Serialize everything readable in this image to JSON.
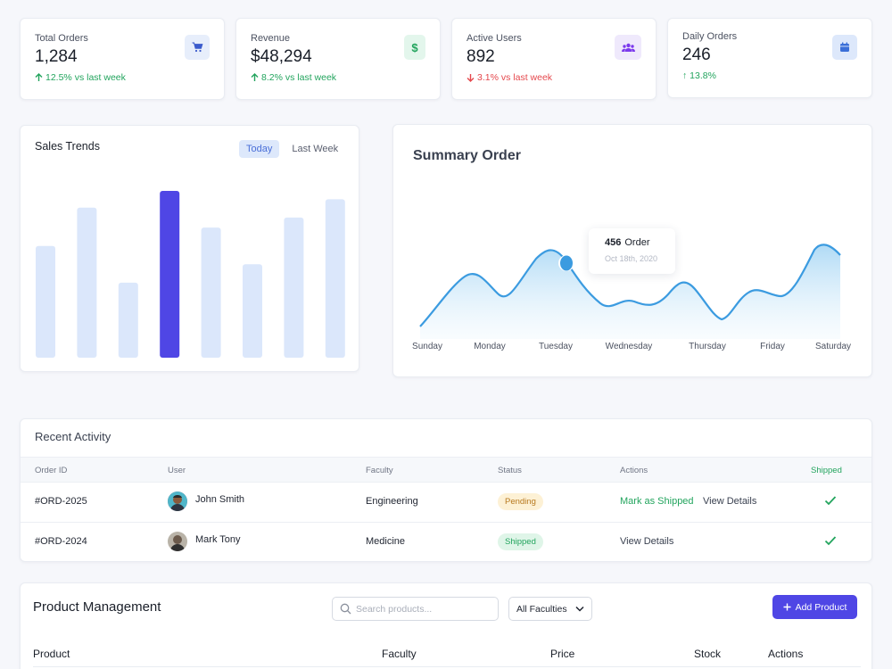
{
  "stats": [
    {
      "label": "Total Orders",
      "value": "1,284",
      "delta": "12.5% vs last week",
      "trend": "up",
      "icon": "cart-icon",
      "icon_color": "#3b5bcc",
      "icon_bg": "#e7eefb"
    },
    {
      "label": "Revenue",
      "value": "$48,294",
      "delta": "8.2% vs last week",
      "trend": "up",
      "icon": "dollar-icon",
      "icon_color": "#22a45d",
      "icon_bg": "#e3f6ec"
    },
    {
      "label": "Active Users",
      "value": "892",
      "delta": "3.1% vs last week",
      "trend": "down",
      "icon": "users-icon",
      "icon_color": "#7c3aed",
      "icon_bg": "#efe9fc"
    },
    {
      "label": "Daily Orders",
      "value": "246",
      "delta": "↑ 13.8%",
      "trend": "up",
      "icon": "calendar-icon",
      "icon_color": "#3b6fd8",
      "icon_bg": "#dde8fb"
    }
  ],
  "sales_trends": {
    "title": "Sales Trends",
    "tabs": [
      "Today",
      "Last Week"
    ],
    "active_tab": "Today",
    "chart_data": {
      "type": "bar",
      "values": [
        0.67,
        0.9,
        0.45,
        1.0,
        0.78,
        0.56,
        0.84,
        0.95
      ],
      "highlight_index": 3,
      "bar_color": "#dbe7fb",
      "highlight_color": "#4f46e5"
    }
  },
  "summary_order": {
    "title": "Summary Order",
    "tooltip": {
      "count": "456",
      "label": "Order",
      "date": "Oct 18th, 2020"
    },
    "chart_data": {
      "type": "area",
      "categories": [
        "Sunday",
        "Monday",
        "Tuesday",
        "Wednesday",
        "Thursday",
        "Friday",
        "Saturday"
      ],
      "line_color": "#3b9be0",
      "fill_color": "#bfe2f7"
    }
  },
  "recent_activity": {
    "title": "Recent Activity",
    "columns": [
      "Order ID",
      "User",
      "Faculty",
      "Status",
      "Actions",
      "Shipped"
    ],
    "rows": [
      {
        "order_id": "#ORD-2025",
        "user": "John Smith",
        "faculty": "Engineering",
        "status": "Pending",
        "status_color": "#b7791f",
        "status_bg": "#fdf1d5",
        "action_primary": "Mark as Shipped",
        "action_secondary": "View Details"
      },
      {
        "order_id": "#ORD-2024",
        "user": "Mark Tony",
        "faculty": "Medicine",
        "status": "Shipped",
        "status_color": "#22a45d",
        "status_bg": "#dff5e8",
        "action_primary": "View Details",
        "action_secondary": ""
      }
    ]
  },
  "product_management": {
    "title": "Product Management",
    "search_placeholder": "Search products...",
    "faculty_filter": "All Faculties",
    "add_button": "Add Product",
    "columns": [
      "Product",
      "Faculty",
      "Price",
      "Stock",
      "Actions"
    ]
  },
  "colors": {
    "accent": "#4f46e5",
    "success": "#22a45d",
    "danger": "#e5484d"
  }
}
